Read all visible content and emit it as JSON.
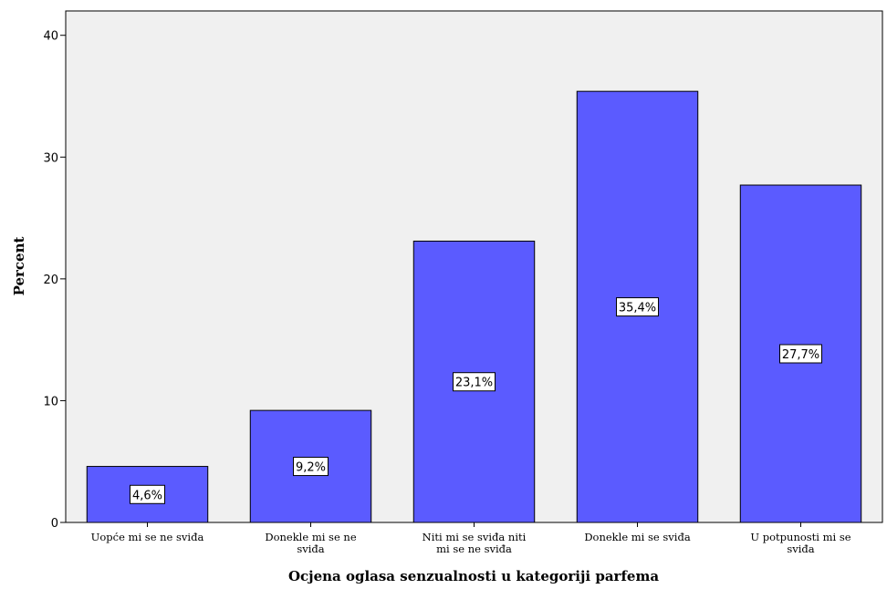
{
  "chart_data": {
    "type": "bar",
    "categories": [
      [
        "Uopće mi se ne sviđa"
      ],
      [
        "Donekle mi se ne",
        "sviđa"
      ],
      [
        "Niti mi se sviđa niti",
        "mi se ne sviđa"
      ],
      [
        "Donekle mi se sviđa"
      ],
      [
        "U potpunosti mi se",
        "sviđa"
      ]
    ],
    "values": [
      4.6,
      9.2,
      23.1,
      35.4,
      27.7
    ],
    "data_labels": [
      "4,6%",
      "9,2%",
      "23,1%",
      "35,4%",
      "27,7%"
    ],
    "xlabel": "Ocjena oglasa senzualnosti u kategoriji parfema",
    "ylabel": "Percent",
    "ylim": [
      0,
      42
    ],
    "yticks": [
      0,
      10,
      20,
      30,
      40
    ],
    "grid": false,
    "bar_color": "#5b5bff",
    "plot_background": "#f0f0f0"
  }
}
